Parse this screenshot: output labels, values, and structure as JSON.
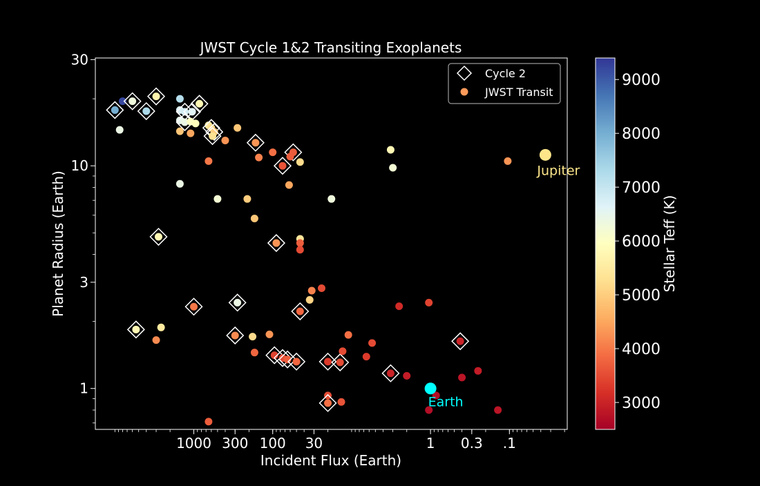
{
  "chart_data": {
    "type": "scatter",
    "title": "JWST Cycle 1&2 Transiting Exoplanets",
    "xlabel": "Incident Flux (Earth)",
    "ylabel": "Planet Radius (Earth)",
    "x_scale": "log",
    "x_reversed": true,
    "y_scale": "log",
    "xlim": [
      17700,
      0.0185
    ],
    "ylim": [
      0.655,
      30.5
    ],
    "x_ticks": [
      {
        "value": 1000,
        "label": "1000"
      },
      {
        "value": 300,
        "label": "300"
      },
      {
        "value": 100,
        "label": "100"
      },
      {
        "value": 30,
        "label": "30"
      },
      {
        "value": 1,
        "label": "1"
      },
      {
        "value": 0.3,
        "label": "0.3"
      },
      {
        "value": 0.1,
        "label": ".1"
      }
    ],
    "y_ticks": [
      {
        "value": 1,
        "label": "1"
      },
      {
        "value": 3,
        "label": "3"
      },
      {
        "value": 10,
        "label": "10"
      },
      {
        "value": 30,
        "label": "30"
      }
    ],
    "colorbar": {
      "label": "Stellar Teff (K)",
      "range": [
        2500,
        9400
      ],
      "ticks": [
        3000,
        4000,
        5000,
        6000,
        7000,
        8000,
        9000
      ],
      "colormap": "RdYlBu"
    },
    "legend": {
      "position": "top-right",
      "entries": [
        {
          "label": "Cycle 2",
          "marker": "diamond"
        },
        {
          "label": "JWST Transit",
          "marker": "circle",
          "color": "#fb9a5a"
        }
      ]
    },
    "annotations": [
      {
        "text": "Jupiter",
        "x": 0.035,
        "y": 11.2,
        "color": "#fde68a"
      },
      {
        "text": "Earth",
        "x": 1,
        "y": 1,
        "color": "#00ffff"
      }
    ],
    "reference_points": [
      {
        "name": "Jupiter",
        "x": 0.035,
        "y": 11.2,
        "color": "#fde68a"
      },
      {
        "name": "Earth",
        "x": 1,
        "y": 1,
        "color": "#00ffff"
      }
    ],
    "points": [
      {
        "x": 8000,
        "y": 19.5,
        "teff": 9200
      },
      {
        "x": 6000,
        "y": 19.5,
        "teff": 6300,
        "cycle2": true
      },
      {
        "x": 10000,
        "y": 17.8,
        "teff": 8000,
        "cycle2": true
      },
      {
        "x": 4000,
        "y": 17.6,
        "teff": 7300,
        "cycle2": true
      },
      {
        "x": 3000,
        "y": 20.5,
        "teff": 5700,
        "cycle2": true
      },
      {
        "x": 8700,
        "y": 14.5,
        "teff": 6400
      },
      {
        "x": 1500,
        "y": 20.0,
        "teff": 7200
      },
      {
        "x": 850,
        "y": 19.0,
        "teff": 5800,
        "cycle2": true
      },
      {
        "x": 1500,
        "y": 17.8,
        "teff": 6700
      },
      {
        "x": 1300,
        "y": 17.5,
        "teff": 6800,
        "cycle2": true
      },
      {
        "x": 1050,
        "y": 17.5,
        "teff": 6600,
        "cycle2": true
      },
      {
        "x": 1500,
        "y": 16.0,
        "teff": 6500
      },
      {
        "x": 1300,
        "y": 15.7,
        "teff": 6400,
        "cycle2": true
      },
      {
        "x": 1100,
        "y": 15.8,
        "teff": 6000
      },
      {
        "x": 950,
        "y": 15.5,
        "teff": 5900
      },
      {
        "x": 650,
        "y": 15.2,
        "teff": 5500
      },
      {
        "x": 600,
        "y": 14.8,
        "teff": 5200,
        "cycle2": true
      },
      {
        "x": 550,
        "y": 14.2,
        "teff": 5000,
        "cycle2": true
      },
      {
        "x": 580,
        "y": 13.6,
        "teff": 5300,
        "cycle2": true
      },
      {
        "x": 280,
        "y": 14.8,
        "teff": 4900
      },
      {
        "x": 1500,
        "y": 14.3,
        "teff": 4900
      },
      {
        "x": 1100,
        "y": 14.0,
        "teff": 4500
      },
      {
        "x": 400,
        "y": 13.0,
        "teff": 4300
      },
      {
        "x": 165,
        "y": 12.7,
        "teff": 4300,
        "cycle2": true
      },
      {
        "x": 100,
        "y": 11.5,
        "teff": 3900
      },
      {
        "x": 55,
        "y": 11.5,
        "teff": 3700,
        "cycle2": true
      },
      {
        "x": 60,
        "y": 11.0,
        "teff": 3700
      },
      {
        "x": 150,
        "y": 10.9,
        "teff": 4100
      },
      {
        "x": 75,
        "y": 10.0,
        "teff": 3600,
        "cycle2": true
      },
      {
        "x": 45,
        "y": 10.4,
        "teff": 5200
      },
      {
        "x": 650,
        "y": 10.5,
        "teff": 4000
      },
      {
        "x": 1500,
        "y": 8.3,
        "teff": 6400
      },
      {
        "x": 500,
        "y": 7.1,
        "teff": 6200
      },
      {
        "x": 210,
        "y": 7.1,
        "teff": 5000
      },
      {
        "x": 62,
        "y": 8.2,
        "teff": 4500
      },
      {
        "x": 18,
        "y": 7.1,
        "teff": 6300
      },
      {
        "x": 3.2,
        "y": 11.8,
        "teff": 5800
      },
      {
        "x": 3.0,
        "y": 9.8,
        "teff": 6200
      },
      {
        "x": 0.105,
        "y": 10.5,
        "teff": 4300
      },
      {
        "x": 170,
        "y": 5.8,
        "teff": 4900
      },
      {
        "x": 2800,
        "y": 4.8,
        "teff": 5800,
        "cycle2": true
      },
      {
        "x": 90,
        "y": 4.5,
        "teff": 4300,
        "cycle2": true
      },
      {
        "x": 45,
        "y": 4.7,
        "teff": 5400
      },
      {
        "x": 45,
        "y": 4.5,
        "teff": 3700
      },
      {
        "x": 45,
        "y": 4.2,
        "teff": 3500
      },
      {
        "x": 32,
        "y": 2.75,
        "teff": 4100
      },
      {
        "x": 24,
        "y": 2.82,
        "teff": 3500
      },
      {
        "x": 34,
        "y": 2.5,
        "teff": 5100
      },
      {
        "x": 1000,
        "y": 2.33,
        "teff": 4000,
        "cycle2": true
      },
      {
        "x": 280,
        "y": 2.43,
        "teff": 6400,
        "cycle2": true
      },
      {
        "x": 45,
        "y": 2.22,
        "teff": 3800,
        "cycle2": true
      },
      {
        "x": 2.5,
        "y": 2.34,
        "teff": 3100
      },
      {
        "x": 1.05,
        "y": 2.43,
        "teff": 3400
      },
      {
        "x": 5400,
        "y": 1.84,
        "teff": 5800,
        "cycle2": true
      },
      {
        "x": 2600,
        "y": 1.88,
        "teff": 5500
      },
      {
        "x": 3000,
        "y": 1.65,
        "teff": 4200
      },
      {
        "x": 300,
        "y": 1.73,
        "teff": 4200,
        "cycle2": true
      },
      {
        "x": 180,
        "y": 1.71,
        "teff": 5200
      },
      {
        "x": 110,
        "y": 1.75,
        "teff": 4300
      },
      {
        "x": 170,
        "y": 1.45,
        "teff": 3800
      },
      {
        "x": 95,
        "y": 1.41,
        "teff": 3400,
        "cycle2": true
      },
      {
        "x": 75,
        "y": 1.37,
        "teff": 3500,
        "cycle2": true
      },
      {
        "x": 65,
        "y": 1.35,
        "teff": 3700,
        "cycle2": true
      },
      {
        "x": 50,
        "y": 1.32,
        "teff": 3800,
        "cycle2": true
      },
      {
        "x": 20,
        "y": 1.32,
        "teff": 3300,
        "cycle2": true
      },
      {
        "x": 14,
        "y": 1.31,
        "teff": 3500,
        "cycle2": true
      },
      {
        "x": 13,
        "y": 1.47,
        "teff": 3500
      },
      {
        "x": 11,
        "y": 1.74,
        "teff": 3900
      },
      {
        "x": 6.5,
        "y": 1.39,
        "teff": 3300
      },
      {
        "x": 5.5,
        "y": 1.6,
        "teff": 3500
      },
      {
        "x": 3.2,
        "y": 1.17,
        "teff": 3000,
        "cycle2": true
      },
      {
        "x": 2.0,
        "y": 1.14,
        "teff": 2900
      },
      {
        "x": 0.85,
        "y": 0.93,
        "teff": 2700
      },
      {
        "x": 0.42,
        "y": 1.63,
        "teff": 3000,
        "cycle2": true
      },
      {
        "x": 0.4,
        "y": 1.12,
        "teff": 2800
      },
      {
        "x": 0.25,
        "y": 1.2,
        "teff": 2900
      },
      {
        "x": 0.14,
        "y": 0.8,
        "teff": 2800
      },
      {
        "x": 1.05,
        "y": 0.8,
        "teff": 2700
      },
      {
        "x": 20,
        "y": 0.93,
        "teff": 3500
      },
      {
        "x": 20,
        "y": 0.86,
        "teff": 3900,
        "cycle2": true
      },
      {
        "x": 13.5,
        "y": 0.87,
        "teff": 3600
      },
      {
        "x": 650,
        "y": 0.71,
        "teff": 3700
      }
    ]
  }
}
